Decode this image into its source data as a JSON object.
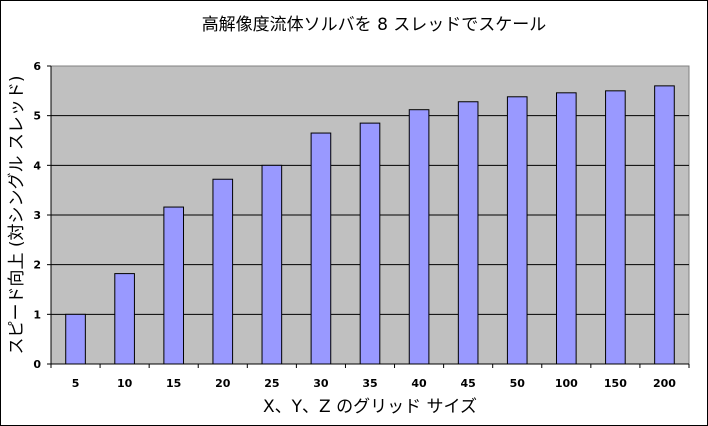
{
  "chart_data": {
    "type": "bar",
    "title": "高解像度流体ソルバを 8 スレッドでスケール",
    "xlabel": "X、Y、Z のグリッド サイズ",
    "ylabel": "スピード向上 (対シングル スレッド)",
    "categories": [
      "5",
      "10",
      "15",
      "20",
      "25",
      "30",
      "35",
      "40",
      "45",
      "50",
      "100",
      "150",
      "200"
    ],
    "values": [
      1.0,
      1.82,
      3.16,
      3.72,
      4.0,
      4.65,
      4.85,
      5.12,
      5.28,
      5.38,
      5.46,
      5.5,
      5.6
    ],
    "ylim": [
      0,
      6
    ],
    "yticks": [
      "0",
      "1",
      "2",
      "3",
      "4",
      "5",
      "6"
    ],
    "grid": true,
    "plot_background": "#c0c0c0",
    "bar_color": "#9999ff",
    "bar_edge_color": "#000000"
  }
}
